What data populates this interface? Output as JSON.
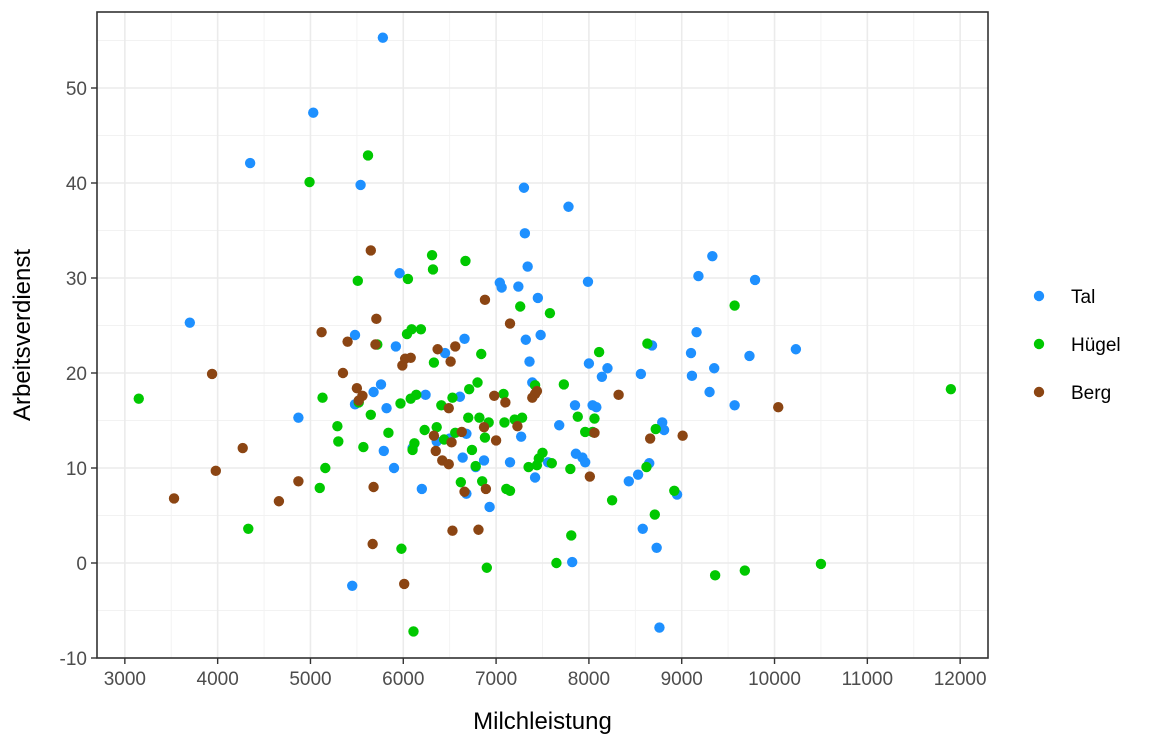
{
  "chart_data": {
    "type": "scatter",
    "title": "",
    "xlabel": "Milchleistung",
    "ylabel": "Arbeitsverdienst",
    "xlim": [
      2700,
      12300
    ],
    "ylim": [
      -10,
      58
    ],
    "x_ticks": [
      "3000",
      "4000",
      "5000",
      "6000",
      "7000",
      "8000",
      "9000",
      "10000",
      "11000",
      "12000"
    ],
    "y_ticks": [
      "-10",
      "0",
      "10",
      "20",
      "30",
      "40",
      "50"
    ],
    "grid": true,
    "legend_position": "right",
    "series": [
      {
        "name": "Tal",
        "color": "#1e90ff",
        "points": [
          [
            3700,
            25.3
          ],
          [
            4350,
            42.1
          ],
          [
            4870,
            15.3
          ],
          [
            5030,
            47.4
          ],
          [
            5450,
            -2.4
          ],
          [
            5480,
            24.0
          ],
          [
            5480,
            16.7
          ],
          [
            5540,
            39.8
          ],
          [
            5780,
            55.3
          ],
          [
            5680,
            18.0
          ],
          [
            5760,
            18.8
          ],
          [
            5790,
            11.8
          ],
          [
            5820,
            16.3
          ],
          [
            5900,
            10.0
          ],
          [
            5920,
            22.8
          ],
          [
            5960,
            30.5
          ],
          [
            6100,
            12.1
          ],
          [
            6200,
            7.8
          ],
          [
            6240,
            17.7
          ],
          [
            6360,
            12.8
          ],
          [
            6450,
            22.1
          ],
          [
            6500,
            13.1
          ],
          [
            6610,
            17.5
          ],
          [
            6640,
            11.1
          ],
          [
            6660,
            23.6
          ],
          [
            6680,
            7.3
          ],
          [
            6680,
            13.6
          ],
          [
            6780,
            10.1
          ],
          [
            6870,
            10.8
          ],
          [
            6930,
            5.9
          ],
          [
            7040,
            29.5
          ],
          [
            7060,
            29.0
          ],
          [
            7150,
            10.6
          ],
          [
            7240,
            29.1
          ],
          [
            7270,
            13.3
          ],
          [
            7300,
            39.5
          ],
          [
            7310,
            34.7
          ],
          [
            7320,
            23.5
          ],
          [
            7340,
            31.2
          ],
          [
            7360,
            21.2
          ],
          [
            7390,
            19.0
          ],
          [
            7420,
            9.0
          ],
          [
            7450,
            27.9
          ],
          [
            7480,
            24.0
          ],
          [
            7560,
            10.6
          ],
          [
            7680,
            14.5
          ],
          [
            7780,
            37.5
          ],
          [
            7850,
            16.6
          ],
          [
            7820,
            0.1
          ],
          [
            7860,
            11.5
          ],
          [
            7930,
            11.1
          ],
          [
            7960,
            10.6
          ],
          [
            7990,
            29.6
          ],
          [
            8000,
            21.0
          ],
          [
            8040,
            16.6
          ],
          [
            8080,
            16.4
          ],
          [
            8140,
            19.6
          ],
          [
            8200,
            20.5
          ],
          [
            8430,
            8.6
          ],
          [
            8530,
            9.3
          ],
          [
            8560,
            19.9
          ],
          [
            8580,
            3.6
          ],
          [
            8650,
            10.5
          ],
          [
            8680,
            22.9
          ],
          [
            8730,
            1.6
          ],
          [
            8760,
            -6.8
          ],
          [
            8790,
            14.8
          ],
          [
            8810,
            14.0
          ],
          [
            8950,
            7.2
          ],
          [
            9100,
            22.1
          ],
          [
            9110,
            19.7
          ],
          [
            9160,
            24.3
          ],
          [
            9180,
            30.2
          ],
          [
            9300,
            18.0
          ],
          [
            9330,
            32.3
          ],
          [
            9350,
            20.5
          ],
          [
            9570,
            16.6
          ],
          [
            9730,
            21.8
          ],
          [
            9790,
            29.8
          ],
          [
            10230,
            22.5
          ]
        ]
      },
      {
        "name": "Hügel",
        "color": "#00c800",
        "points": [
          [
            3150,
            17.3
          ],
          [
            4330,
            3.6
          ],
          [
            4990,
            40.1
          ],
          [
            5100,
            7.9
          ],
          [
            5130,
            17.4
          ],
          [
            5160,
            10.0
          ],
          [
            5290,
            14.4
          ],
          [
            5300,
            12.8
          ],
          [
            5510,
            29.7
          ],
          [
            5520,
            16.9
          ],
          [
            5570,
            12.2
          ],
          [
            5620,
            42.9
          ],
          [
            5650,
            15.6
          ],
          [
            5720,
            23.0
          ],
          [
            5840,
            13.7
          ],
          [
            5970,
            16.8
          ],
          [
            5980,
            1.5
          ],
          [
            6040,
            24.1
          ],
          [
            6050,
            29.9
          ],
          [
            6080,
            17.3
          ],
          [
            6090,
            24.6
          ],
          [
            6100,
            11.9
          ],
          [
            6120,
            12.6
          ],
          [
            6110,
            -7.2
          ],
          [
            6140,
            17.7
          ],
          [
            6190,
            24.6
          ],
          [
            6230,
            14.0
          ],
          [
            6310,
            32.4
          ],
          [
            6320,
            30.9
          ],
          [
            6330,
            21.1
          ],
          [
            6360,
            14.3
          ],
          [
            6410,
            16.6
          ],
          [
            6440,
            13.0
          ],
          [
            6530,
            17.4
          ],
          [
            6560,
            13.7
          ],
          [
            6620,
            8.5
          ],
          [
            6670,
            31.8
          ],
          [
            6700,
            15.3
          ],
          [
            6710,
            18.3
          ],
          [
            6740,
            11.9
          ],
          [
            6800,
            19.0
          ],
          [
            6780,
            10.2
          ],
          [
            6820,
            15.3
          ],
          [
            6840,
            22.0
          ],
          [
            6850,
            8.6
          ],
          [
            6880,
            13.2
          ],
          [
            6900,
            -0.5
          ],
          [
            6920,
            14.8
          ],
          [
            7080,
            17.8
          ],
          [
            7090,
            14.8
          ],
          [
            7110,
            7.8
          ],
          [
            7150,
            7.6
          ],
          [
            7200,
            15.1
          ],
          [
            7260,
            27.0
          ],
          [
            7280,
            15.3
          ],
          [
            7350,
            10.1
          ],
          [
            7420,
            18.7
          ],
          [
            7440,
            10.3
          ],
          [
            7460,
            11.0
          ],
          [
            7500,
            11.6
          ],
          [
            7580,
            26.3
          ],
          [
            7600,
            10.5
          ],
          [
            7650,
            0.0
          ],
          [
            7730,
            18.8
          ],
          [
            7800,
            9.9
          ],
          [
            7810,
            2.9
          ],
          [
            7880,
            15.4
          ],
          [
            7960,
            13.8
          ],
          [
            8040,
            13.8
          ],
          [
            8060,
            15.2
          ],
          [
            8110,
            22.2
          ],
          [
            8250,
            6.6
          ],
          [
            8620,
            10.1
          ],
          [
            8630,
            23.1
          ],
          [
            8710,
            5.1
          ],
          [
            8720,
            14.1
          ],
          [
            8920,
            7.6
          ],
          [
            9360,
            -1.3
          ],
          [
            9570,
            27.1
          ],
          [
            9680,
            -0.8
          ],
          [
            10500,
            -0.1
          ],
          [
            11900,
            18.3
          ]
        ]
      },
      {
        "name": "Berg",
        "color": "#8b4513",
        "points": [
          [
            3530,
            6.8
          ],
          [
            3940,
            19.9
          ],
          [
            3980,
            9.7
          ],
          [
            4270,
            12.1
          ],
          [
            4660,
            6.5
          ],
          [
            4870,
            8.6
          ],
          [
            5120,
            24.3
          ],
          [
            5350,
            20.0
          ],
          [
            5400,
            23.3
          ],
          [
            5500,
            18.4
          ],
          [
            5520,
            17.1
          ],
          [
            5560,
            17.6
          ],
          [
            5650,
            32.9
          ],
          [
            5680,
            8.0
          ],
          [
            5670,
            2.0
          ],
          [
            5700,
            23.0
          ],
          [
            5710,
            25.7
          ],
          [
            5990,
            20.8
          ],
          [
            6010,
            -2.2
          ],
          [
            6020,
            21.5
          ],
          [
            6080,
            21.6
          ],
          [
            6330,
            13.4
          ],
          [
            6350,
            11.8
          ],
          [
            6370,
            22.5
          ],
          [
            6420,
            10.8
          ],
          [
            6490,
            16.3
          ],
          [
            6490,
            10.4
          ],
          [
            6510,
            21.2
          ],
          [
            6520,
            12.7
          ],
          [
            6530,
            3.4
          ],
          [
            6560,
            22.8
          ],
          [
            6630,
            13.8
          ],
          [
            6660,
            7.5
          ],
          [
            6810,
            3.5
          ],
          [
            6870,
            14.3
          ],
          [
            6880,
            27.7
          ],
          [
            6890,
            7.8
          ],
          [
            6980,
            17.6
          ],
          [
            7000,
            12.9
          ],
          [
            7100,
            16.9
          ],
          [
            7150,
            25.2
          ],
          [
            7230,
            14.4
          ],
          [
            7390,
            17.4
          ],
          [
            7420,
            17.8
          ],
          [
            7440,
            18.1
          ],
          [
            8010,
            9.1
          ],
          [
            8060,
            13.7
          ],
          [
            8320,
            17.7
          ],
          [
            8660,
            13.1
          ],
          [
            9010,
            13.4
          ],
          [
            10040,
            16.4
          ]
        ]
      }
    ]
  }
}
